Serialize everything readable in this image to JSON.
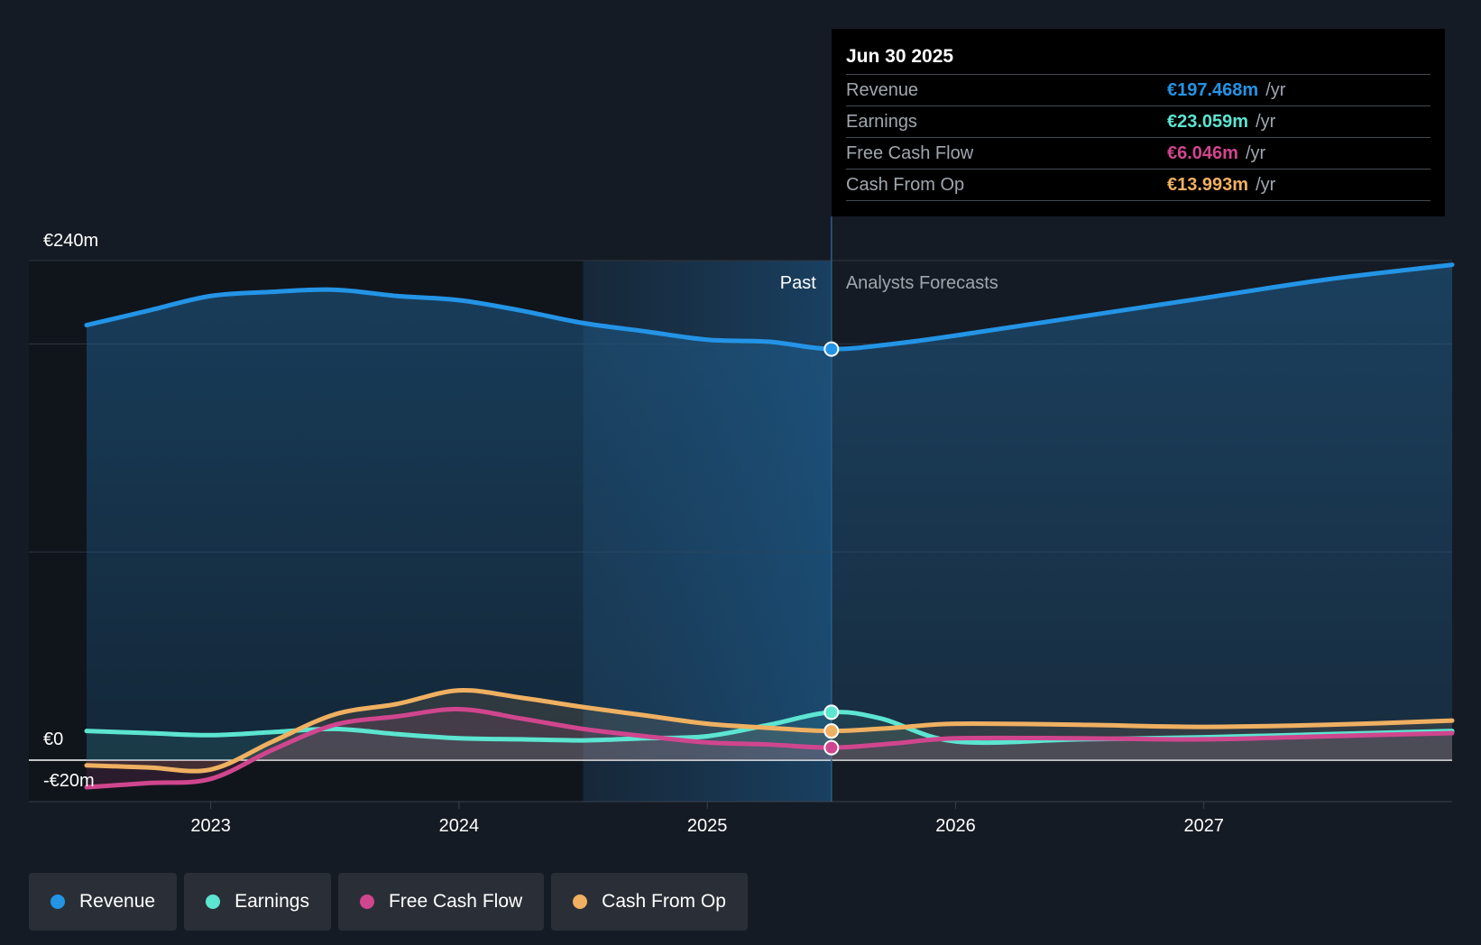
{
  "chart_data": {
    "type": "line",
    "y_axis": {
      "min": -20,
      "max": 240,
      "unit": "€m",
      "labels": [
        {
          "value": 240,
          "text": "€240m"
        },
        {
          "value": 0,
          "text": "€0"
        },
        {
          "value": -20,
          "text": "-€20m"
        }
      ],
      "gridlines": [
        240,
        200,
        100,
        0
      ]
    },
    "x_axis": {
      "min": 2022.5,
      "max": 2028.0,
      "ticks": [
        {
          "value": 2023,
          "label": "2023"
        },
        {
          "value": 2024,
          "label": "2024"
        },
        {
          "value": 2025,
          "label": "2025"
        },
        {
          "value": 2026,
          "label": "2026"
        },
        {
          "value": 2027,
          "label": "2027"
        }
      ]
    },
    "past_region_start": 2024.5,
    "divider_x": 2025.5,
    "past_label": "Past",
    "forecast_label": "Analysts Forecasts",
    "series": [
      {
        "name": "Revenue",
        "color": "#2394e6",
        "points": [
          [
            2022.5,
            209
          ],
          [
            2022.75,
            216
          ],
          [
            2023.0,
            223
          ],
          [
            2023.25,
            225
          ],
          [
            2023.5,
            226
          ],
          [
            2023.75,
            223
          ],
          [
            2024.0,
            221
          ],
          [
            2024.25,
            216
          ],
          [
            2024.5,
            210
          ],
          [
            2024.75,
            206
          ],
          [
            2025.0,
            202
          ],
          [
            2025.25,
            201
          ],
          [
            2025.5,
            197.5
          ],
          [
            2025.75,
            200
          ],
          [
            2026.0,
            204
          ],
          [
            2026.5,
            213
          ],
          [
            2027.0,
            222
          ],
          [
            2027.5,
            231
          ],
          [
            2028.0,
            238
          ]
        ]
      },
      {
        "name": "Earnings",
        "color": "#5ce5d1",
        "points": [
          [
            2022.5,
            14
          ],
          [
            2022.75,
            13
          ],
          [
            2023.0,
            12
          ],
          [
            2023.25,
            13.5
          ],
          [
            2023.5,
            15
          ],
          [
            2023.75,
            12.5
          ],
          [
            2024.0,
            10.5
          ],
          [
            2024.25,
            10
          ],
          [
            2024.5,
            9.5
          ],
          [
            2024.75,
            10.5
          ],
          [
            2025.0,
            11.5
          ],
          [
            2025.25,
            17
          ],
          [
            2025.5,
            23
          ],
          [
            2025.7,
            20
          ],
          [
            2026.0,
            9
          ],
          [
            2026.5,
            10
          ],
          [
            2027.0,
            11
          ],
          [
            2027.5,
            12.5
          ],
          [
            2028.0,
            14
          ]
        ]
      },
      {
        "name": "Free Cash Flow",
        "color": "#d0468e",
        "points": [
          [
            2022.5,
            -13
          ],
          [
            2022.75,
            -11
          ],
          [
            2023.0,
            -9
          ],
          [
            2023.25,
            5
          ],
          [
            2023.5,
            17
          ],
          [
            2023.75,
            21
          ],
          [
            2024.0,
            24.5
          ],
          [
            2024.25,
            20
          ],
          [
            2024.5,
            15
          ],
          [
            2024.75,
            11.5
          ],
          [
            2025.0,
            8.5
          ],
          [
            2025.25,
            7.5
          ],
          [
            2025.5,
            6
          ],
          [
            2025.75,
            8
          ],
          [
            2026.0,
            10.5
          ],
          [
            2026.5,
            10.5
          ],
          [
            2027.0,
            10
          ],
          [
            2027.5,
            11.5
          ],
          [
            2028.0,
            13
          ]
        ]
      },
      {
        "name": "Cash From Op",
        "color": "#efb061",
        "points": [
          [
            2022.5,
            -2.5
          ],
          [
            2022.75,
            -3.5
          ],
          [
            2023.0,
            -4.5
          ],
          [
            2023.25,
            9
          ],
          [
            2023.5,
            22
          ],
          [
            2023.75,
            27
          ],
          [
            2024.0,
            33.5
          ],
          [
            2024.25,
            30
          ],
          [
            2024.5,
            25.5
          ],
          [
            2024.75,
            21.5
          ],
          [
            2025.0,
            17.5
          ],
          [
            2025.25,
            15.5
          ],
          [
            2025.5,
            14
          ],
          [
            2025.75,
            15.5
          ],
          [
            2026.0,
            17.5
          ],
          [
            2026.5,
            17
          ],
          [
            2027.0,
            16
          ],
          [
            2027.5,
            17
          ],
          [
            2028.0,
            19
          ]
        ]
      }
    ],
    "highlight_x": 2025.5,
    "tooltip": {
      "date": "Jun 30 2025",
      "rows": [
        {
          "name": "Revenue",
          "value": "€197.468m",
          "unit": "/yr",
          "color": "#2394e6"
        },
        {
          "name": "Earnings",
          "value": "€23.059m",
          "unit": "/yr",
          "color": "#5ce5d1"
        },
        {
          "name": "Free Cash Flow",
          "value": "€6.046m",
          "unit": "/yr",
          "color": "#d0468e"
        },
        {
          "name": "Cash From Op",
          "value": "€13.993m",
          "unit": "/yr",
          "color": "#efb061"
        }
      ]
    }
  },
  "legend": [
    {
      "label": "Revenue",
      "color": "#2394e6"
    },
    {
      "label": "Earnings",
      "color": "#5ce5d1"
    },
    {
      "label": "Free Cash Flow",
      "color": "#d0468e"
    },
    {
      "label": "Cash From Op",
      "color": "#efb061"
    }
  ]
}
